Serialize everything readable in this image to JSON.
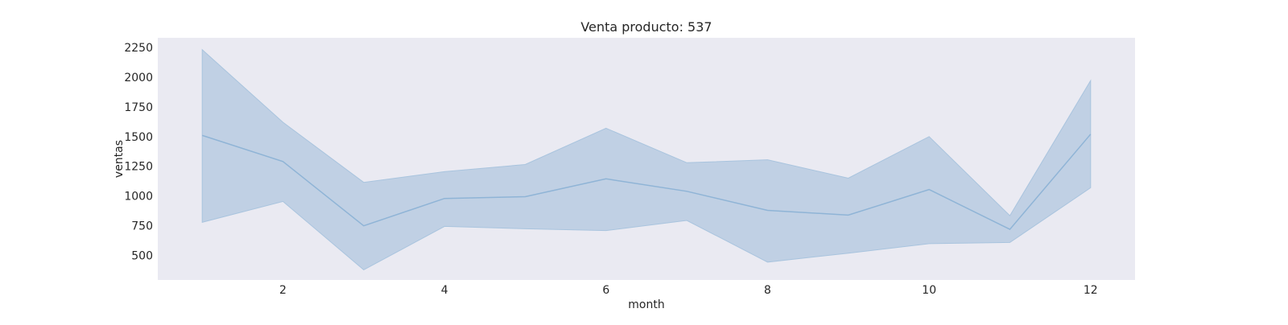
{
  "chart_data": {
    "type": "line",
    "title": "Venta producto: 537",
    "xlabel": "month",
    "ylabel": "ventas",
    "x": [
      1,
      2,
      3,
      4,
      5,
      6,
      7,
      8,
      9,
      10,
      11,
      12
    ],
    "series": [
      {
        "values": [
          1510,
          1290,
          750,
          980,
          995,
          1145,
          1040,
          880,
          840,
          1055,
          720,
          1520
        ],
        "ci_upper": [
          2230,
          1620,
          1115,
          1205,
          1265,
          1570,
          1280,
          1305,
          1150,
          1500,
          835,
          1970
        ],
        "ci_lower": [
          780,
          955,
          380,
          745,
          725,
          710,
          795,
          445,
          520,
          600,
          610,
          1070
        ],
        "color": "#8fb4d6"
      }
    ],
    "xticks": [
      2,
      4,
      6,
      8,
      10,
      12
    ],
    "yticks": [
      500,
      750,
      1000,
      1250,
      1500,
      1750,
      2000,
      2250
    ],
    "xlim": [
      0.45,
      12.55
    ],
    "ylim": [
      295,
      2330
    ],
    "grid": false,
    "background_color": "#eaeaf2"
  }
}
